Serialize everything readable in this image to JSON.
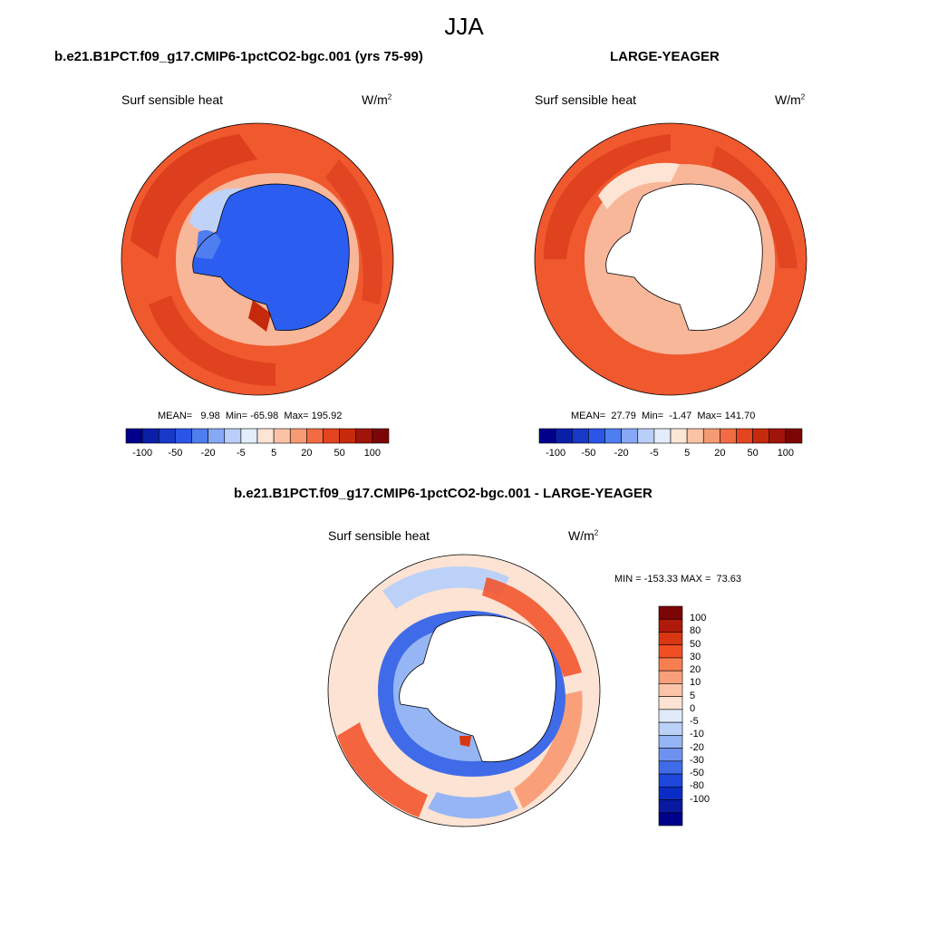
{
  "figure": {
    "title": "JJA"
  },
  "panels": [
    {
      "title": "b.e21.B1PCT.f09_g17.CMIP6-1pctCO2-bgc.001 (yrs 75-99)",
      "variable": "Surf sensible heat",
      "units": "W/m",
      "units_sup": "2",
      "stats": "MEAN=   9.98  Min= -65.98  Max= 195.92",
      "map": "south-polar-stereographic",
      "ice_field": "blue"
    },
    {
      "title": "LARGE-YEAGER",
      "variable": "Surf sensible heat",
      "units": "W/m",
      "units_sup": "2",
      "stats": "MEAN=  27.79  Min=  -1.47  Max= 141.70",
      "map": "south-polar-stereographic",
      "ice_field": "missing"
    },
    {
      "title": "b.e21.B1PCT.f09_g17.CMIP6-1pctCO2-bgc.001 - LARGE-YEAGER",
      "variable": "Surf sensible heat",
      "units": "W/m",
      "units_sup": "2",
      "stats": "MIN = -153.33 MAX =  73.63",
      "map": "south-polar-stereographic",
      "ice_field": "missing"
    }
  ],
  "colorbar_main": {
    "colors": [
      "#00008b",
      "#0a1fa8",
      "#1838c8",
      "#2a55e6",
      "#4f7ef0",
      "#86a8f5",
      "#b9cff9",
      "#e2ecfb",
      "#fde5d6",
      "#fac3a6",
      "#f69a74",
      "#f26b43",
      "#e4441f",
      "#c52a0c",
      "#a0140a",
      "#7c0606"
    ],
    "tick_labels": [
      "-100",
      "-50",
      "-20",
      "-5",
      "5",
      "20",
      "50",
      "100"
    ]
  },
  "colorbar_diff": {
    "colors": [
      "#7c0606",
      "#b01a0a",
      "#d93711",
      "#f24e24",
      "#f77f4f",
      "#f9a07a",
      "#fbc4a8",
      "#fde3d3",
      "#e0eafa",
      "#bcd1f8",
      "#96b5f4",
      "#6e93ef",
      "#3f6be8",
      "#1e48dc",
      "#0a2cc4",
      "#0a1aa0",
      "#00008b"
    ],
    "tick_labels": [
      "100",
      "80",
      "50",
      "30",
      "20",
      "10",
      "5",
      "0",
      "-5",
      "-10",
      "-20",
      "-30",
      "-50",
      "-80",
      "-100"
    ]
  },
  "colors": {
    "warm": "#f0582e",
    "warm_dark": "#d8381a",
    "warm_light": "#f9b79a",
    "ice_blue": "#2b5ef0",
    "cool_light": "#bfd3f8"
  }
}
